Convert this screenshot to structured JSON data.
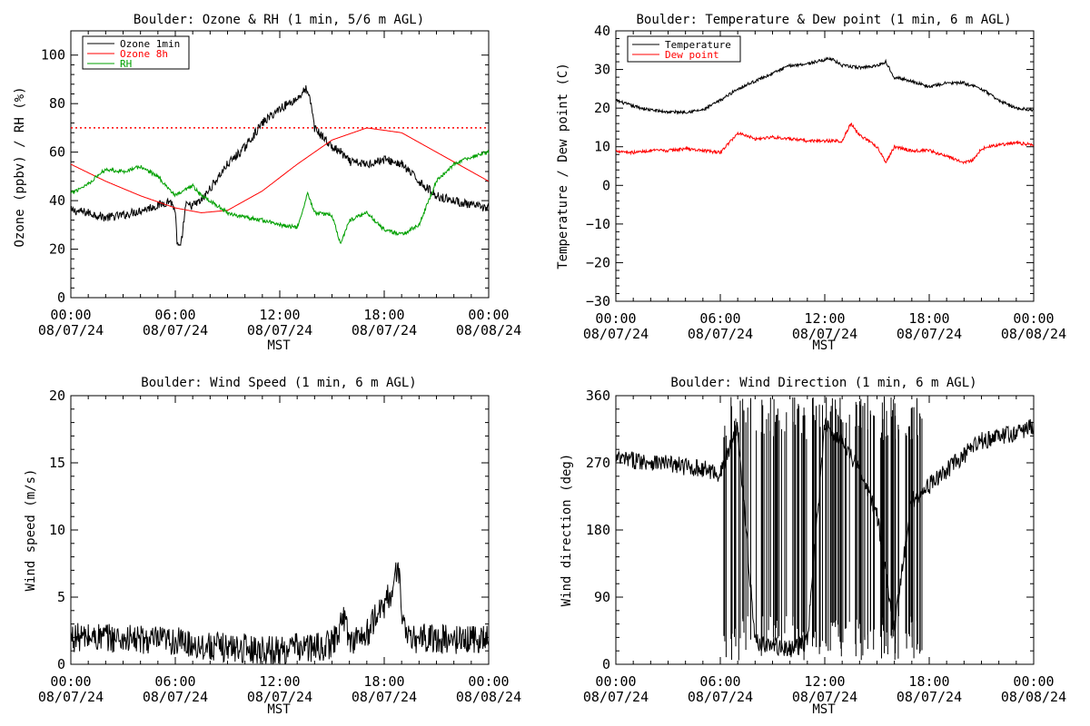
{
  "chart_data": [
    {
      "id": "ozone",
      "type": "line",
      "title": "Boulder: Ozone & RH (1 min, 5/6 m AGL)",
      "xlabel": "MST",
      "ylabel": "Ozone (ppbv) / RH (%)",
      "xlim_hours": [
        0,
        24
      ],
      "ylim": [
        0,
        110
      ],
      "yticks": [
        "0",
        "20",
        "40",
        "60",
        "80",
        "100"
      ],
      "ytick_values": [
        0,
        20,
        40,
        60,
        80,
        100
      ],
      "xticks": [
        {
          "hour": 0,
          "time": "00:00",
          "date": "08/07/24"
        },
        {
          "hour": 6,
          "time": "06:00",
          "date": "08/07/24"
        },
        {
          "hour": 12,
          "time": "12:00",
          "date": "08/07/24"
        },
        {
          "hour": 18,
          "time": "18:00",
          "date": "08/07/24"
        },
        {
          "hour": 24,
          "time": "00:00",
          "date": "08/08/24"
        }
      ],
      "legend": {
        "placement": "top-left"
      },
      "reference_line": {
        "y": 70,
        "color": "#ff0000",
        "style": "dotted"
      },
      "series": [
        {
          "name": "Ozone 1min",
          "color": "#000000",
          "noise": 1.8,
          "x": [
            0,
            1,
            2,
            3,
            4,
            5,
            5.7,
            6.0,
            6.1,
            6.3,
            6.6,
            7.0,
            7.5,
            8,
            9,
            10,
            11,
            12,
            13,
            13.5,
            13.8,
            14.0,
            14.5,
            15,
            15.5,
            16,
            17,
            18,
            19,
            20,
            21,
            22,
            23,
            24
          ],
          "y": [
            36,
            35,
            33,
            34,
            36,
            38,
            40,
            36,
            22,
            20,
            38,
            38,
            40,
            45,
            55,
            62,
            72,
            78,
            82,
            86,
            80,
            70,
            66,
            62,
            60,
            56,
            55,
            57,
            55,
            48,
            42,
            40,
            38,
            37
          ]
        },
        {
          "name": "Ozone 8h",
          "color": "#ff0000",
          "noise": 0,
          "x": [
            0,
            2,
            4,
            6,
            7.5,
            9,
            11,
            13,
            15,
            17,
            19,
            21,
            23,
            24
          ],
          "y": [
            55,
            48,
            42,
            37,
            35,
            36,
            44,
            55,
            65,
            70,
            68,
            60,
            52,
            48
          ]
        },
        {
          "name": "RH",
          "color": "#00a000",
          "noise": 0.8,
          "x": [
            0,
            1,
            2,
            3,
            4,
            5,
            6,
            7,
            7.5,
            8,
            9,
            10,
            11,
            12,
            13,
            13.6,
            14,
            15,
            15.5,
            16,
            17,
            18,
            19,
            20,
            21,
            22,
            23,
            24
          ],
          "y": [
            43,
            47,
            53,
            52,
            54,
            50,
            42,
            46,
            42,
            40,
            35,
            33,
            32,
            30,
            29,
            43,
            35,
            34,
            22,
            32,
            35,
            28,
            26,
            30,
            48,
            55,
            58,
            60
          ]
        }
      ]
    },
    {
      "id": "temp",
      "type": "line",
      "title": "Boulder: Temperature & Dew point (1 min, 6 m AGL)",
      "xlabel": "MST",
      "ylabel": "Temperature / Dew point (C)",
      "xlim_hours": [
        0,
        24
      ],
      "ylim": [
        -30,
        40
      ],
      "yticks": [
        "−30",
        "−20",
        "−10",
        "0",
        "10",
        "20",
        "30",
        "40"
      ],
      "ytick_values": [
        -30,
        -20,
        -10,
        0,
        10,
        20,
        30,
        40
      ],
      "xticks": [
        {
          "hour": 0,
          "time": "00:00",
          "date": "08/07/24"
        },
        {
          "hour": 6,
          "time": "06:00",
          "date": "08/07/24"
        },
        {
          "hour": 12,
          "time": "12:00",
          "date": "08/07/24"
        },
        {
          "hour": 18,
          "time": "18:00",
          "date": "08/07/24"
        },
        {
          "hour": 24,
          "time": "00:00",
          "date": "08/08/24"
        }
      ],
      "legend": {
        "placement": "top-left"
      },
      "series": [
        {
          "name": "Temperature",
          "color": "#000000",
          "noise": 0.4,
          "x": [
            0,
            1,
            2,
            3,
            4,
            5,
            6,
            7,
            8,
            9,
            10,
            11,
            12,
            12.3,
            13,
            14,
            15,
            15.5,
            16,
            17,
            18,
            19,
            20,
            21,
            22,
            23,
            24
          ],
          "y": [
            22,
            20.5,
            19.5,
            19,
            19,
            19.5,
            22,
            25,
            27,
            29,
            31,
            31.5,
            32.5,
            33,
            31,
            30.5,
            31,
            32,
            28,
            27,
            25.5,
            26.5,
            26.5,
            25,
            22,
            20,
            19.5
          ]
        },
        {
          "name": "Dew point",
          "color": "#ff0000",
          "noise": 0.4,
          "x": [
            0,
            1,
            2,
            3,
            4,
            5,
            6,
            6.5,
            7,
            7.5,
            8,
            9,
            10,
            11,
            12,
            13,
            13.5,
            14,
            14.5,
            15,
            15.5,
            16,
            17,
            18,
            19,
            20,
            20.5,
            21,
            22,
            23,
            24
          ],
          "y": [
            9,
            8.5,
            9,
            9,
            9.5,
            9,
            8.5,
            11,
            13.5,
            13,
            12,
            12.5,
            12,
            11.5,
            11.5,
            11.5,
            16,
            13,
            11.5,
            10,
            6,
            10,
            9,
            9,
            7.5,
            6,
            6.5,
            9.5,
            10.5,
            11,
            10.5
          ]
        }
      ]
    },
    {
      "id": "wspd",
      "type": "line",
      "title": "Boulder: Wind Speed (1 min, 6 m AGL)",
      "xlabel": "MST",
      "ylabel": "Wind speed (m/s)",
      "xlim_hours": [
        0,
        24
      ],
      "ylim": [
        0,
        20
      ],
      "yticks": [
        "0",
        "5",
        "10",
        "15",
        "20"
      ],
      "ytick_values": [
        0,
        5,
        10,
        15,
        20
      ],
      "xticks": [
        {
          "hour": 0,
          "time": "00:00",
          "date": "08/07/24"
        },
        {
          "hour": 6,
          "time": "06:00",
          "date": "08/07/24"
        },
        {
          "hour": 12,
          "time": "12:00",
          "date": "08/07/24"
        },
        {
          "hour": 18,
          "time": "18:00",
          "date": "08/07/24"
        },
        {
          "hour": 24,
          "time": "00:00",
          "date": "08/08/24"
        }
      ],
      "series": [
        {
          "name": "Wind speed",
          "color": "#000000",
          "noise": 1.1,
          "x": [
            0,
            2,
            4,
            6,
            8,
            10,
            12,
            13,
            14,
            15,
            15.7,
            16,
            17,
            17.5,
            18,
            18.5,
            18.8,
            19.1,
            19.5,
            20,
            22,
            24
          ],
          "y": [
            2,
            2,
            1.8,
            1.7,
            1.3,
            1.2,
            1.0,
            1.3,
            1.2,
            1.5,
            3.5,
            1.8,
            2.2,
            3.5,
            4.5,
            5.5,
            7.5,
            3.0,
            1.6,
            2.0,
            1.8,
            2.0
          ]
        }
      ]
    },
    {
      "id": "wdir",
      "type": "line",
      "title": "Boulder: Wind Direction (1 min, 6 m AGL)",
      "xlabel": "MST",
      "ylabel": "Wind direction (deg)",
      "xlim_hours": [
        0,
        24
      ],
      "ylim": [
        0,
        360
      ],
      "yticks": [
        "0",
        "90",
        "180",
        "270",
        "360"
      ],
      "ytick_values": [
        0,
        90,
        180,
        270,
        360
      ],
      "xticks": [
        {
          "hour": 0,
          "time": "00:00",
          "date": "08/07/24"
        },
        {
          "hour": 6,
          "time": "06:00",
          "date": "08/07/24"
        },
        {
          "hour": 12,
          "time": "12:00",
          "date": "08/07/24"
        },
        {
          "hour": 18,
          "time": "18:00",
          "date": "08/07/24"
        },
        {
          "hour": 24,
          "time": "00:00",
          "date": "08/08/24"
        }
      ],
      "series": [
        {
          "name": "Wind direction",
          "color": "#000000",
          "noise": 12,
          "x": [
            0,
            2,
            4,
            5,
            6,
            7,
            8,
            9,
            10,
            11,
            12,
            13,
            14,
            15,
            16,
            17,
            18,
            19,
            20,
            21,
            22,
            23,
            24
          ],
          "y": [
            275,
            272,
            265,
            262,
            255,
            320,
            30,
            25,
            20,
            30,
            320,
            300,
            260,
            200,
            50,
            220,
            240,
            260,
            280,
            300,
            305,
            310,
            320
          ]
        }
      ]
    }
  ]
}
